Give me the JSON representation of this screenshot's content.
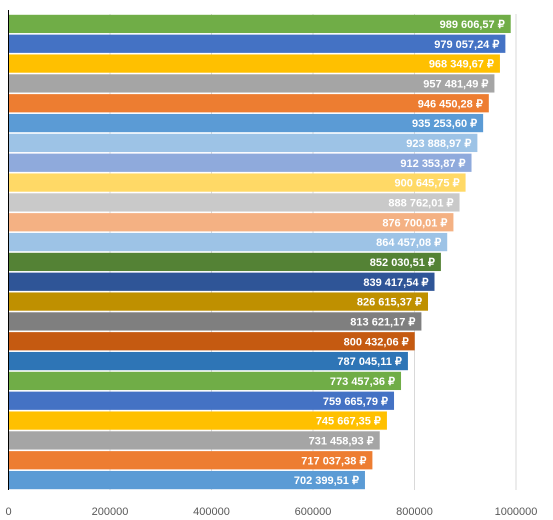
{
  "chart_data": {
    "type": "bar",
    "orientation": "horizontal",
    "title": "",
    "xlabel": "",
    "ylabel": "",
    "xlim": [
      0,
      1000000
    ],
    "x_ticks": [
      0,
      200000,
      400000,
      600000,
      800000,
      1000000
    ],
    "x_tick_labels": [
      "0",
      "200000",
      "400000",
      "600000",
      "800000",
      "1000000"
    ],
    "grid": true,
    "legend": "none",
    "values": [
      989606.57,
      979057.24,
      968349.67,
      957481.49,
      946450.28,
      935253.6,
      923888.97,
      912353.87,
      900645.75,
      888762.01,
      876700.01,
      864457.08,
      852030.51,
      839417.54,
      826615.37,
      813621.17,
      800432.06,
      787045.11,
      773457.36,
      759665.79,
      745667.35,
      731458.93,
      717037.38,
      702399.51
    ],
    "data_labels": [
      "989 606,57 ₽",
      "979 057,24 ₽",
      "968 349,67 ₽",
      "957 481,49 ₽",
      "946 450,28 ₽",
      "935 253,60 ₽",
      "923 888,97 ₽",
      "912 353,87 ₽",
      "900 645,75 ₽",
      "888 762,01 ₽",
      "876 700,01 ₽",
      "864 457,08 ₽",
      "852 030,51 ₽",
      "839 417,54 ₽",
      "826 615,37 ₽",
      "813 621,17 ₽",
      "800 432,06 ₽",
      "787 045,11 ₽",
      "773 457,36 ₽",
      "759 665,79 ₽",
      "745 667,35 ₽",
      "731 458,93 ₽",
      "717 037,38 ₽",
      "702 399,51 ₽"
    ],
    "colors": [
      "#70ad47",
      "#4472c4",
      "#ffc000",
      "#a5a5a5",
      "#ed7d31",
      "#5b9bd5",
      "#9dc3e6",
      "#8faadc",
      "#ffd966",
      "#c9c9c9",
      "#f4b183",
      "#9dc3e6",
      "#548235",
      "#2f5597",
      "#bf9000",
      "#7f7f7f",
      "#c55a11",
      "#2e75b6",
      "#70ad47",
      "#4472c4",
      "#ffc000",
      "#a5a5a5",
      "#ed7d31",
      "#5b9bd5"
    ]
  }
}
